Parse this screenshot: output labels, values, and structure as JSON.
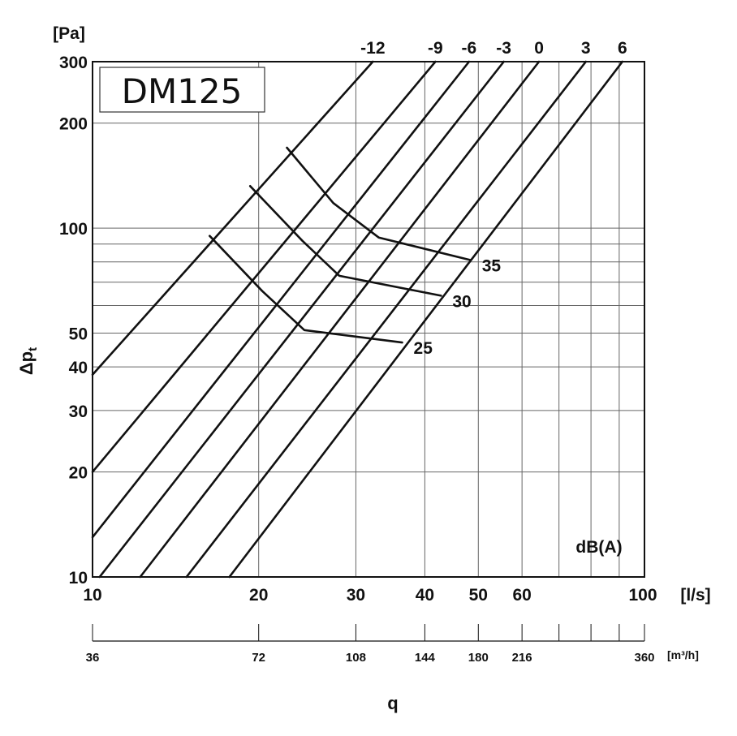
{
  "chart_data": {
    "type": "line",
    "title": "DM125",
    "xlabel": "q",
    "ylabel": "Δp",
    "ylabel_sub": "t",
    "x_unit": "[l/s]",
    "y_unit": "[Pa]",
    "x2_unit": "[m³/h]",
    "x_scale": "log",
    "y_scale": "log",
    "xlim": [
      10,
      100
    ],
    "ylim": [
      10,
      300
    ],
    "x_ticks": [
      10,
      20,
      30,
      40,
      50,
      60,
      100
    ],
    "x_tick_labels": [
      "10",
      "20",
      "30",
      "40",
      "50",
      "60",
      "100"
    ],
    "x_grid": [
      10,
      20,
      30,
      40,
      50,
      60,
      70,
      80,
      90,
      100
    ],
    "y_ticks": [
      10,
      20,
      30,
      40,
      50,
      100,
      200,
      300
    ],
    "y_tick_labels": [
      "10",
      "20",
      "30",
      "40",
      "50",
      "100",
      "200",
      "300"
    ],
    "y_grid": [
      10,
      20,
      30,
      40,
      50,
      60,
      70,
      80,
      90,
      100,
      200,
      300
    ],
    "x2_ticks": [
      10,
      20,
      30,
      40,
      50,
      60,
      100
    ],
    "x2_tick_labels": [
      "36",
      "72",
      "108",
      "144",
      "180",
      "216",
      "360"
    ],
    "x2_minor_ticks": [
      70,
      80,
      90
    ],
    "grid": true,
    "legend_title": "dB(A)",
    "legend_placement": "bottom-right",
    "sound_correction_lines": [
      {
        "label": "-12",
        "points": [
          [
            10,
            38
          ],
          [
            32.2,
            300
          ]
        ]
      },
      {
        "label": "-9",
        "points": [
          [
            10,
            20
          ],
          [
            41.8,
            300
          ]
        ]
      },
      {
        "label": "-6",
        "points": [
          [
            10,
            13
          ],
          [
            48.1,
            300
          ]
        ]
      },
      {
        "label": "-3",
        "points": [
          [
            10.3,
            10
          ],
          [
            55.6,
            300
          ]
        ]
      },
      {
        "label": "0",
        "points": [
          [
            12.2,
            10
          ],
          [
            64.4,
            300
          ]
        ]
      },
      {
        "label": "3",
        "points": [
          [
            14.8,
            10
          ],
          [
            78.3,
            300
          ]
        ]
      },
      {
        "label": "6",
        "points": [
          [
            17.7,
            10
          ],
          [
            91.2,
            300
          ]
        ]
      }
    ],
    "sound_level_curves": [
      {
        "label": "35",
        "points": [
          [
            22.5,
            170
          ],
          [
            27.3,
            118
          ],
          [
            33.0,
            94
          ],
          [
            48.4,
            81
          ]
        ]
      },
      {
        "label": "30",
        "points": [
          [
            19.3,
            132
          ],
          [
            24.0,
            92
          ],
          [
            28.0,
            73
          ],
          [
            42.8,
            64
          ]
        ]
      },
      {
        "label": "25",
        "points": [
          [
            16.3,
            95
          ],
          [
            20.3,
            66
          ],
          [
            24.2,
            51
          ],
          [
            36.4,
            47
          ]
        ]
      }
    ]
  }
}
